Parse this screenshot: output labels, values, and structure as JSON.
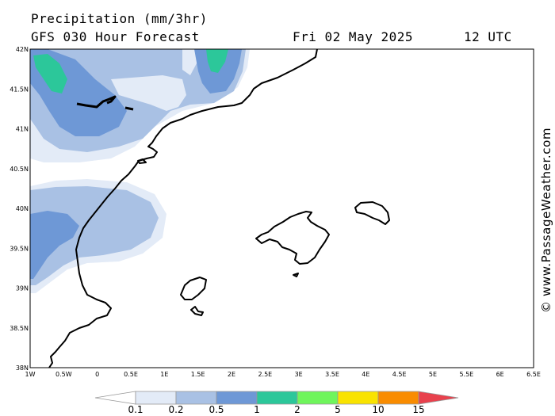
{
  "header": {
    "title": "Precipitation (mm/3hr)",
    "model": "GFS 030 Hour Forecast",
    "date": "Fri 02 May 2025",
    "time": "12 UTC"
  },
  "credit": "© www.PassageWeather.com",
  "axes": {
    "lat_labels": [
      "42N",
      "41.5N",
      "41N",
      "40.5N",
      "40N",
      "39.5N",
      "39N",
      "38.5N",
      "38N"
    ],
    "lon_labels": [
      "1W",
      "0.5W",
      "0",
      "0.5E",
      "1E",
      "1.5E",
      "2E",
      "2.5E",
      "3E",
      "3.5E",
      "4E",
      "4.5E",
      "5E",
      "5.5E",
      "6E",
      "6.5E"
    ]
  },
  "legend": {
    "labels": [
      "0.1",
      "0.2",
      "0.5",
      "1",
      "2",
      "5",
      "10",
      "15"
    ],
    "colors": [
      "#ffffff",
      "#e3ebf7",
      "#a9c1e4",
      "#6e98d6",
      "#2cc79a",
      "#6ff55c",
      "#f9e300",
      "#f98c00",
      "#e8414d"
    ]
  }
}
